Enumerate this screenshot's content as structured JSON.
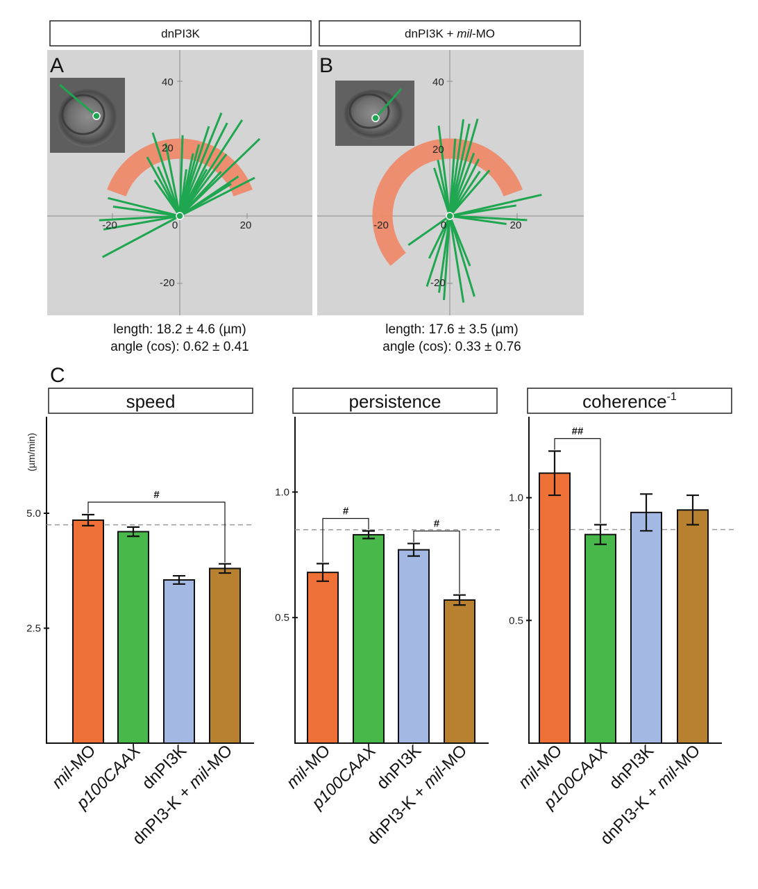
{
  "panels_top": [
    {
      "letter": "A",
      "title": "dnPI3K",
      "title_parts": [
        {
          "text": "dnPI3K",
          "italic": false
        }
      ],
      "ticks": {
        "x": [
          "-20",
          "0",
          "20"
        ],
        "y": [
          "40",
          "20",
          "-20"
        ]
      },
      "stats": [
        "length: 18.2 ± 4.6 (µm)",
        "angle (cos): 0.62 ± 0.41"
      ],
      "arc_deg": [
        20,
        160
      ],
      "inset_vector_deg": 135,
      "vectors": [
        {
          "angle": 57,
          "length": 34
        },
        {
          "angle": 63,
          "length": 31
        },
        {
          "angle": 68,
          "length": 33
        },
        {
          "angle": 72,
          "length": 28
        },
        {
          "angle": 75,
          "length": 22
        },
        {
          "angle": 53,
          "length": 23
        },
        {
          "angle": 47,
          "length": 18
        },
        {
          "angle": 44,
          "length": 33
        },
        {
          "angle": 34,
          "length": 21
        },
        {
          "angle": 27,
          "length": 25
        },
        {
          "angle": 32,
          "length": 18
        },
        {
          "angle": 60,
          "length": 16
        },
        {
          "angle": 82,
          "length": 14
        },
        {
          "angle": 88,
          "length": 24
        },
        {
          "angle": 101,
          "length": 22
        },
        {
          "angle": 108,
          "length": 26
        },
        {
          "angle": 114,
          "length": 16
        },
        {
          "angle": 119,
          "length": 20
        },
        {
          "angle": 125,
          "length": 13
        },
        {
          "angle": 166,
          "length": 22
        },
        {
          "angle": 172,
          "length": 20
        },
        {
          "angle": 183,
          "length": 24
        },
        {
          "angle": 190,
          "length": 23
        },
        {
          "angle": 208,
          "length": 26
        },
        {
          "angle": 78,
          "length": 19
        }
      ]
    },
    {
      "letter": "B",
      "title": "dnPI3K + mil-MO",
      "title_parts": [
        {
          "text": "dnPI3K + ",
          "italic": false
        },
        {
          "text": "mil",
          "italic": true
        },
        {
          "text": "-MO",
          "italic": false
        }
      ],
      "ticks": {
        "x": [
          "-20",
          "0",
          "20"
        ],
        "y": [
          "40",
          "20",
          "-20"
        ]
      },
      "stats": [
        "length: 17.6 ± 3.5 (µm)",
        "angle (cos): 0.33 ± 0.76"
      ],
      "arc_deg": [
        20,
        220
      ],
      "inset_vector_deg": 45,
      "vectors": [
        {
          "angle": 74,
          "length": 30
        },
        {
          "angle": 78,
          "length": 28
        },
        {
          "angle": 82,
          "length": 29
        },
        {
          "angle": 86,
          "length": 23
        },
        {
          "angle": 69,
          "length": 20
        },
        {
          "angle": 63,
          "length": 19
        },
        {
          "angle": 56,
          "length": 16
        },
        {
          "angle": 49,
          "length": 18
        },
        {
          "angle": 97,
          "length": 27
        },
        {
          "angle": 102,
          "length": 17
        },
        {
          "angle": 108,
          "length": 15
        },
        {
          "angle": 13,
          "length": 28
        },
        {
          "angle": 9,
          "length": 20
        },
        {
          "angle": -3,
          "length": 23
        },
        {
          "angle": -8,
          "length": 17
        },
        {
          "angle": 215,
          "length": 15
        },
        {
          "angle": 244,
          "length": 14
        },
        {
          "angle": 252,
          "length": 22
        },
        {
          "angle": 262,
          "length": 23
        },
        {
          "angle": 266,
          "length": 25
        },
        {
          "angle": 279,
          "length": 26
        },
        {
          "angle": 287,
          "length": 25
        },
        {
          "angle": 292,
          "length": 16
        }
      ]
    }
  ],
  "panel_c_letter": "C",
  "categories": [
    [
      {
        "text": "mil",
        "italic": true
      },
      {
        "text": "-MO",
        "italic": false
      }
    ],
    [
      {
        "text": "p100CAAX",
        "italic": true
      }
    ],
    [
      {
        "text": "dnPI3K",
        "italic": false
      }
    ],
    [
      {
        "text": "dnPI3-K + ",
        "italic": false
      },
      {
        "text": "mil",
        "italic": true
      },
      {
        "text": "-MO",
        "italic": false
      }
    ]
  ],
  "category_text": [
    "mil-MO",
    "p100CAAX",
    "dnPI3K",
    "dnPI3-K + mil-MO"
  ],
  "colors": [
    "#f07137",
    "#49b84a",
    "#a3b8e2",
    "#b7812f"
  ],
  "chart_data": [
    {
      "type": "bar",
      "title": "speed",
      "ylabel": "(µm/min)",
      "categories": [
        "mil-MO",
        "p100CAAX",
        "dnPI3K",
        "dnPI3-K + mil-MO"
      ],
      "values": [
        4.85,
        4.6,
        3.55,
        3.8
      ],
      "errors": [
        0.12,
        0.1,
        0.09,
        0.1
      ],
      "ylim": [
        0,
        7.1
      ],
      "yticks": [
        2.5,
        5.0
      ],
      "ytick_labels": [
        "2.5",
        "5.0"
      ],
      "reference_line": 4.75,
      "significance": [
        {
          "from": 0,
          "to": 3,
          "label": "#"
        }
      ]
    },
    {
      "type": "bar",
      "title": "persistence",
      "ylabel": "",
      "categories": [
        "mil-MO",
        "p100CAAX",
        "dnPI3K",
        "dnPI3-K + mil-MO"
      ],
      "values": [
        0.68,
        0.83,
        0.77,
        0.57
      ],
      "errors": [
        0.035,
        0.015,
        0.025,
        0.02
      ],
      "ylim": [
        0,
        1.3
      ],
      "yticks": [
        0.5,
        1.0
      ],
      "ytick_labels": [
        "0.5",
        "1.0"
      ],
      "reference_line": 0.85,
      "significance": [
        {
          "from": 0,
          "to": 1,
          "label": "#"
        },
        {
          "from": 2,
          "to": 3,
          "label": "#"
        }
      ]
    },
    {
      "type": "bar",
      "title": "coherence-1",
      "title_main": "coherence",
      "title_sup": "-1",
      "ylabel": "",
      "categories": [
        "mil-MO",
        "p100CAAX",
        "dnPI3K",
        "dnPI3-K + mil-MO"
      ],
      "values": [
        1.1,
        0.85,
        0.94,
        0.95
      ],
      "errors": [
        0.09,
        0.04,
        0.075,
        0.06
      ],
      "ylim": [
        0,
        1.33
      ],
      "yticks": [
        0.5,
        1.0
      ],
      "ytick_labels": [
        "0.5",
        "1.0"
      ],
      "reference_line": 0.87,
      "significance": [
        {
          "from": 0,
          "to": 1,
          "label": "##"
        }
      ]
    }
  ]
}
